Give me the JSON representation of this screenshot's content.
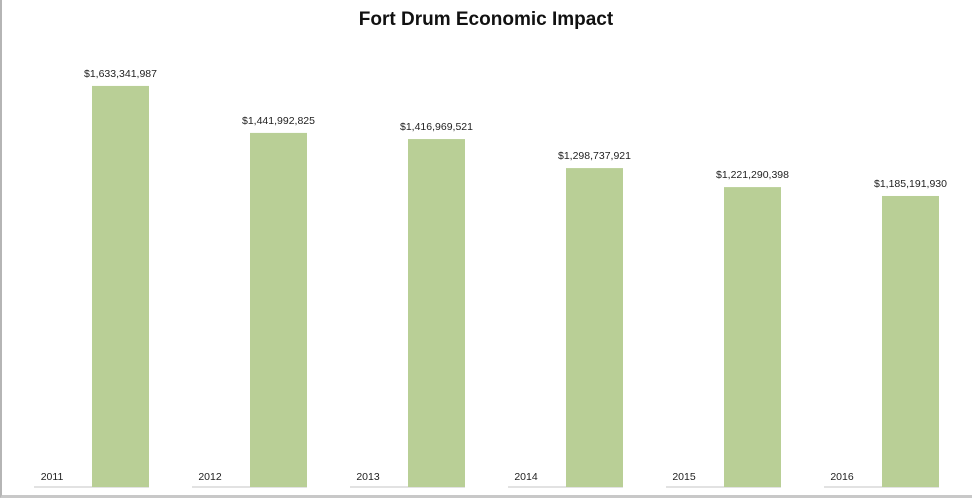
{
  "chart_data": {
    "type": "bar",
    "title": "Fort Drum Economic Impact",
    "categories": [
      "2011",
      "2012",
      "2013",
      "2014",
      "2015",
      "2016"
    ],
    "values": [
      1633341987,
      1441992825,
      1416969521,
      1298737921,
      1221290398,
      1185191930
    ],
    "data_labels": [
      "$1,633,341,987",
      "$1,441,992,825",
      "$1,416,969,521",
      "$1,298,737,921",
      "$1,221,290,398",
      "$1,185,191,930"
    ],
    "xlabel": "",
    "ylabel": "",
    "ylim": [
      0,
      1800000000
    ],
    "grid": false,
    "legend": "none",
    "colors": {
      "bar": "#b9cf96",
      "baseline": "#e2e2e2",
      "text": "#222222"
    }
  }
}
